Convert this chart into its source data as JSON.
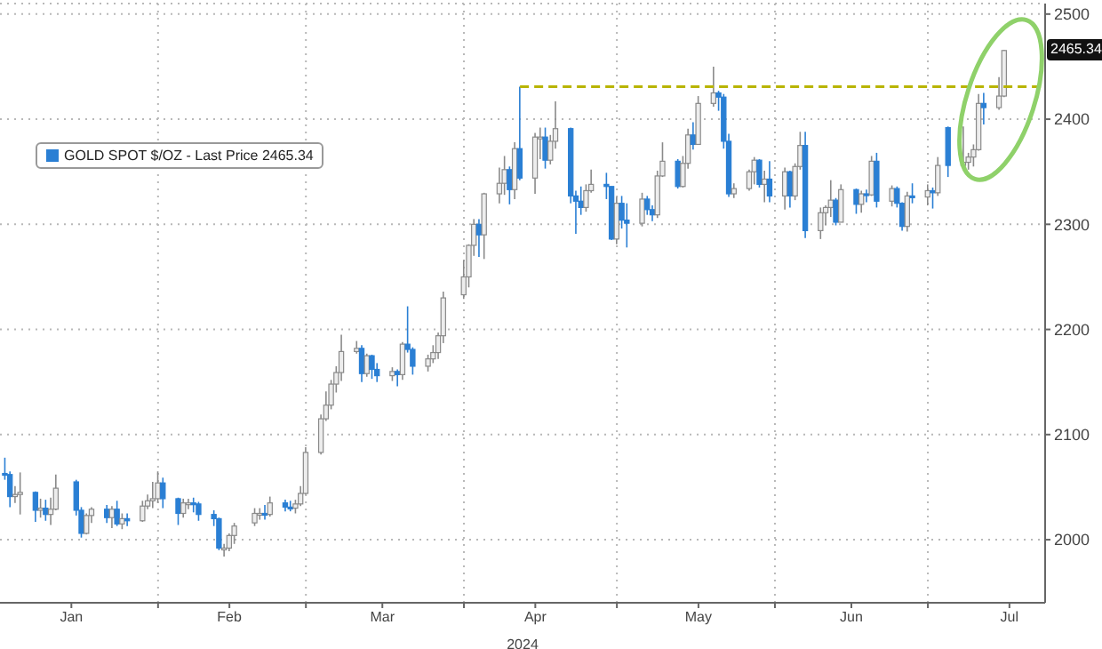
{
  "chart_data": {
    "type": "candlestick",
    "xlabel": "2024",
    "x": [
      "2024-01-02",
      "2024-01-03",
      "2024-01-04",
      "2024-01-05",
      "2024-01-08",
      "2024-01-09",
      "2024-01-10",
      "2024-01-11",
      "2024-01-12",
      "2024-01-16",
      "2024-01-17",
      "2024-01-18",
      "2024-01-19",
      "2024-01-22",
      "2024-01-23",
      "2024-01-24",
      "2024-01-25",
      "2024-01-26",
      "2024-01-29",
      "2024-01-30",
      "2024-01-31",
      "2024-02-01",
      "2024-02-02",
      "2024-02-05",
      "2024-02-06",
      "2024-02-07",
      "2024-02-08",
      "2024-02-09",
      "2024-02-12",
      "2024-02-13",
      "2024-02-14",
      "2024-02-15",
      "2024-02-16",
      "2024-02-20",
      "2024-02-21",
      "2024-02-22",
      "2024-02-23",
      "2024-02-26",
      "2024-02-27",
      "2024-02-28",
      "2024-02-29",
      "2024-03-01",
      "2024-03-04",
      "2024-03-05",
      "2024-03-06",
      "2024-03-07",
      "2024-03-08",
      "2024-03-11",
      "2024-03-12",
      "2024-03-13",
      "2024-03-14",
      "2024-03-15",
      "2024-03-18",
      "2024-03-19",
      "2024-03-20",
      "2024-03-21",
      "2024-03-22",
      "2024-03-25",
      "2024-03-26",
      "2024-03-27",
      "2024-03-28",
      "2024-04-01",
      "2024-04-02",
      "2024-04-03",
      "2024-04-04",
      "2024-04-05",
      "2024-04-08",
      "2024-04-09",
      "2024-04-10",
      "2024-04-11",
      "2024-04-12",
      "2024-04-15",
      "2024-04-16",
      "2024-04-17",
      "2024-04-18",
      "2024-04-19",
      "2024-04-22",
      "2024-04-23",
      "2024-04-24",
      "2024-04-25",
      "2024-04-26",
      "2024-04-29",
      "2024-04-30",
      "2024-05-01",
      "2024-05-02",
      "2024-05-03",
      "2024-05-06",
      "2024-05-07",
      "2024-05-08",
      "2024-05-09",
      "2024-05-10",
      "2024-05-13",
      "2024-05-14",
      "2024-05-15",
      "2024-05-16",
      "2024-05-17",
      "2024-05-20",
      "2024-05-21",
      "2024-05-22",
      "2024-05-23",
      "2024-05-24",
      "2024-05-27",
      "2024-05-28",
      "2024-05-29",
      "2024-05-30",
      "2024-05-31",
      "2024-06-03",
      "2024-06-04",
      "2024-06-05",
      "2024-06-06",
      "2024-06-07",
      "2024-06-10",
      "2024-06-11",
      "2024-06-12",
      "2024-06-13",
      "2024-06-14",
      "2024-06-17",
      "2024-06-18",
      "2024-06-19",
      "2024-06-20",
      "2024-06-21",
      "2024-06-24",
      "2024-06-25",
      "2024-06-26",
      "2024-06-27",
      "2024-06-28",
      "2024-07-01",
      "2024-07-02",
      "2024-07-03",
      "2024-07-05",
      "2024-07-08",
      "2024-07-09",
      "2024-07-10",
      "2024-07-11",
      "2024-07-12",
      "2024-07-15",
      "2024-07-16"
    ],
    "series": [
      {
        "name": "GOLD SPOT $/OZ - Last Price 2465.34",
        "color": "#2a7fd4",
        "colors": [
          "#2a7fd4",
          "#2a7fd4",
          "#ededed",
          "#ededed",
          "#2a7fd4",
          "#ededed",
          "#2a7fd4",
          "#ededed",
          "#ededed",
          "#2a7fd4",
          "#2a7fd4",
          "#ededed",
          "#ededed",
          "#2a7fd4",
          "#ededed",
          "#2a7fd4",
          "#ededed",
          "#2a7fd4",
          "#ededed",
          "#ededed",
          "#ededed",
          "#ededed",
          "#2a7fd4",
          "#2a7fd4",
          "#ededed",
          "#ededed",
          "#2a7fd4",
          "#2a7fd4",
          "#2a7fd4",
          "#2a7fd4",
          "#ededed",
          "#ededed",
          "#ededed",
          "#ededed",
          "#ededed",
          "#2a7fd4",
          "#ededed",
          "#2a7fd4",
          "#2a7fd4",
          "#ededed",
          "#ededed",
          "#ededed",
          "#ededed",
          "#ededed",
          "#ededed",
          "#ededed",
          "#ededed",
          "#ededed",
          "#2a7fd4",
          "#ededed",
          "#2a7fd4",
          "#2a7fd4",
          "#ededed",
          "#2a7fd4",
          "#ededed",
          "#2a7fd4",
          "#2a7fd4",
          "#ededed",
          "#ededed",
          "#ededed",
          "#ededed",
          "#ededed",
          "#ededed",
          "#ededed",
          "#2a7fd4",
          "#ededed",
          "#ededed",
          "#ededed",
          "#2a7fd4",
          "#ededed",
          "#2a7fd4",
          "#ededed",
          "#ededed",
          "#2a7fd4",
          "#ededed",
          "#ededed",
          "#2a7fd4",
          "#2a7fd4",
          "#2a7fd4",
          "#ededed",
          "#ededed",
          "#2a7fd4",
          "#2a7fd4",
          "#ededed",
          "#2a7fd4",
          "#2a7fd4",
          "#ededed",
          "#2a7fd4",
          "#2a7fd4",
          "#ededed",
          "#ededed",
          "#2a7fd4",
          "#ededed",
          "#ededed",
          "#2a7fd4",
          "#ededed",
          "#ededed",
          "#2a7fd4",
          "#2a7fd4",
          "#2a7fd4",
          "#ededed",
          "#ededed",
          "#ededed",
          "#2a7fd4",
          "#ededed",
          "#2a7fd4",
          "#ededed",
          "#2a7fd4",
          "#ededed",
          "#ededed",
          "#2a7fd4",
          "#ededed",
          "#ededed",
          "#ededed",
          "#2a7fd4",
          "#ededed",
          "#2a7fd4",
          "#ededed",
          "#2a7fd4",
          "#ededed",
          "#2a7fd4",
          "#ededed",
          "#2a7fd4",
          "#2a7fd4",
          "#ededed",
          "#2a7fd4",
          "#ededed",
          "#2a7fd4",
          "#ededed",
          "#2a7fd4",
          "#ededed",
          "#ededed",
          "#ededed",
          "#ededed",
          "#2a7fd4",
          "#ededed",
          "#ededed"
        ],
        "ohlc": [
          [
            2063,
            2078,
            2057,
            2062
          ],
          [
            2062,
            2065,
            2031,
            2041
          ],
          [
            2041,
            2051,
            2035,
            2043
          ],
          [
            2043,
            2064,
            2024,
            2045
          ],
          [
            2045,
            2046,
            2017,
            2028
          ],
          [
            2028,
            2039,
            2021,
            2030
          ],
          [
            2030,
            2038,
            2018,
            2024
          ],
          [
            2024,
            2040,
            2014,
            2029
          ],
          [
            2029,
            2062,
            2028,
            2049
          ],
          [
            2055,
            2057,
            2023,
            2028
          ],
          [
            2028,
            2031,
            2002,
            2006
          ],
          [
            2006,
            2025,
            2005,
            2023
          ],
          [
            2023,
            2031,
            2016,
            2029
          ],
          [
            2029,
            2033,
            2016,
            2021
          ],
          [
            2021,
            2032,
            2011,
            2029
          ],
          [
            2029,
            2037,
            2013,
            2015
          ],
          [
            2015,
            2025,
            2010,
            2020
          ],
          [
            2020,
            2025,
            2013,
            2018
          ],
          [
            2018,
            2037,
            2017,
            2032
          ],
          [
            2032,
            2043,
            2029,
            2037
          ],
          [
            2037,
            2055,
            2030,
            2039
          ],
          [
            2039,
            2065,
            2035,
            2054
          ],
          [
            2054,
            2059,
            2030,
            2039
          ],
          [
            2039,
            2040,
            2014,
            2025
          ],
          [
            2025,
            2039,
            2021,
            2035
          ],
          [
            2035,
            2039,
            2029,
            2035
          ],
          [
            2035,
            2040,
            2026,
            2034
          ],
          [
            2034,
            2036,
            2018,
            2024
          ],
          [
            2024,
            2028,
            2013,
            2020
          ],
          [
            2020,
            2021,
            1990,
            1992
          ],
          [
            1992,
            1996,
            1984,
            1992
          ],
          [
            1992,
            2006,
            1989,
            2004
          ],
          [
            2004,
            2016,
            1996,
            2013
          ],
          [
            2016,
            2030,
            2013,
            2025
          ],
          [
            2025,
            2030,
            2019,
            2025
          ],
          [
            2025,
            2033,
            2019,
            2024
          ],
          [
            2024,
            2041,
            2022,
            2035
          ],
          [
            2035,
            2038,
            2027,
            2031
          ],
          [
            2031,
            2037,
            2027,
            2030
          ],
          [
            2030,
            2038,
            2025,
            2034
          ],
          [
            2034,
            2051,
            2032,
            2044
          ],
          [
            2044,
            2088,
            2043,
            2083
          ],
          [
            2083,
            2119,
            2081,
            2115
          ],
          [
            2115,
            2141,
            2113,
            2128
          ],
          [
            2128,
            2152,
            2124,
            2148
          ],
          [
            2148,
            2165,
            2140,
            2159
          ],
          [
            2159,
            2195,
            2151,
            2179
          ],
          [
            2179,
            2189,
            2177,
            2182
          ],
          [
            2182,
            2185,
            2150,
            2158
          ],
          [
            2158,
            2177,
            2155,
            2175
          ],
          [
            2175,
            2176,
            2153,
            2162
          ],
          [
            2162,
            2168,
            2150,
            2156
          ],
          [
            2156,
            2164,
            2151,
            2160
          ],
          [
            2160,
            2162,
            2146,
            2157
          ],
          [
            2157,
            2188,
            2152,
            2186
          ],
          [
            2186,
            2222,
            2178,
            2181
          ],
          [
            2181,
            2183,
            2157,
            2165
          ],
          [
            2165,
            2176,
            2160,
            2172
          ],
          [
            2172,
            2185,
            2168,
            2178
          ],
          [
            2178,
            2197,
            2172,
            2194
          ],
          [
            2194,
            2236,
            2187,
            2230
          ],
          [
            2233,
            2266,
            2229,
            2250
          ],
          [
            2250,
            2281,
            2240,
            2280
          ],
          [
            2280,
            2305,
            2270,
            2300
          ],
          [
            2300,
            2305,
            2269,
            2290
          ],
          [
            2290,
            2330,
            2267,
            2329
          ],
          [
            2329,
            2354,
            2320,
            2339
          ],
          [
            2339,
            2365,
            2328,
            2352
          ],
          [
            2352,
            2355,
            2319,
            2333
          ],
          [
            2333,
            2378,
            2324,
            2372
          ],
          [
            2372,
            2431,
            2342,
            2344
          ],
          [
            2344,
            2387,
            2329,
            2383
          ],
          [
            2383,
            2392,
            2362,
            2383
          ],
          [
            2383,
            2392,
            2353,
            2361
          ],
          [
            2361,
            2385,
            2357,
            2379
          ],
          [
            2379,
            2417,
            2372,
            2391
          ],
          [
            2391,
            2392,
            2320,
            2327
          ],
          [
            2327,
            2332,
            2291,
            2322
          ],
          [
            2322,
            2336,
            2309,
            2316
          ],
          [
            2316,
            2338,
            2312,
            2332
          ],
          [
            2332,
            2352,
            2330,
            2338
          ],
          [
            2338,
            2349,
            2324,
            2336
          ],
          [
            2336,
            2336,
            2285,
            2286
          ],
          [
            2286,
            2326,
            2281,
            2320
          ],
          [
            2320,
            2327,
            2296,
            2304
          ],
          [
            2304,
            2320,
            2278,
            2301
          ],
          [
            2301,
            2330,
            2298,
            2324
          ],
          [
            2324,
            2327,
            2309,
            2314
          ],
          [
            2314,
            2318,
            2303,
            2309
          ],
          [
            2309,
            2351,
            2306,
            2346
          ],
          [
            2346,
            2378,
            2345,
            2360
          ],
          [
            2360,
            2362,
            2334,
            2336
          ],
          [
            2336,
            2365,
            2335,
            2358
          ],
          [
            2358,
            2391,
            2353,
            2385
          ],
          [
            2385,
            2397,
            2371,
            2376
          ],
          [
            2376,
            2422,
            2376,
            2415
          ],
          [
            2415,
            2450,
            2412,
            2425
          ],
          [
            2425,
            2427,
            2408,
            2421
          ],
          [
            2421,
            2424,
            2372,
            2379
          ],
          [
            2379,
            2386,
            2326,
            2329
          ],
          [
            2329,
            2339,
            2325,
            2334
          ],
          [
            2334,
            2352,
            2332,
            2350
          ],
          [
            2350,
            2364,
            2338,
            2361
          ],
          [
            2361,
            2362,
            2335,
            2338
          ],
          [
            2338,
            2351,
            2321,
            2343
          ],
          [
            2343,
            2360,
            2321,
            2327
          ],
          [
            2327,
            2354,
            2314,
            2350
          ],
          [
            2350,
            2351,
            2316,
            2327
          ],
          [
            2327,
            2358,
            2323,
            2355
          ],
          [
            2355,
            2388,
            2352,
            2375
          ],
          [
            2375,
            2388,
            2287,
            2294
          ],
          [
            2294,
            2316,
            2286,
            2311
          ],
          [
            2311,
            2318,
            2299,
            2316
          ],
          [
            2316,
            2342,
            2307,
            2323
          ],
          [
            2323,
            2325,
            2299,
            2302
          ],
          [
            2302,
            2338,
            2302,
            2333
          ],
          [
            2333,
            2334,
            2310,
            2319
          ],
          [
            2319,
            2332,
            2311,
            2329
          ],
          [
            2329,
            2333,
            2321,
            2328
          ],
          [
            2328,
            2365,
            2327,
            2360
          ],
          [
            2360,
            2368,
            2316,
            2322
          ],
          [
            2322,
            2337,
            2317,
            2334
          ],
          [
            2334,
            2336,
            2316,
            2320
          ],
          [
            2320,
            2321,
            2294,
            2298
          ],
          [
            2298,
            2331,
            2293,
            2327
          ],
          [
            2327,
            2339,
            2320,
            2326
          ],
          [
            2326,
            2338,
            2318,
            2332
          ],
          [
            2332,
            2335,
            2315,
            2330
          ],
          [
            2330,
            2364,
            2327,
            2356
          ],
          [
            2392,
            2393,
            2345,
            2356
          ],
          [
            2356,
            2393,
            2353,
            2359
          ],
          [
            2359,
            2368,
            2352,
            2364
          ],
          [
            2364,
            2376,
            2355,
            2371
          ],
          [
            2371,
            2424,
            2370,
            2415
          ],
          [
            2415,
            2425,
            2395,
            2411
          ],
          [
            2411,
            2440,
            2409,
            2422
          ],
          [
            2422,
            2466,
            2421,
            2465.34
          ]
        ]
      },
      {
        "type": "line",
        "color": "#b8b400",
        "line_style": "dashed",
        "marker": "none",
        "x": [
          "2024-04-12",
          "2024-07-24"
        ],
        "values": [
          2431,
          2431
        ]
      }
    ],
    "annotations": [
      {
        "text": "2465.34",
        "y": 2465.34
      }
    ],
    "xlim": [
      "2024-01-01",
      "2024-07-24"
    ],
    "xticks": [
      {
        "value": "2024-01-15",
        "label": "Jan"
      },
      {
        "value": "2024-02-01",
        "label": null
      },
      {
        "value": "2024-02-15",
        "label": "Feb"
      },
      {
        "value": "2024-03-01",
        "label": null
      },
      {
        "value": "2024-03-16",
        "label": "Mar"
      },
      {
        "value": "2024-04-01",
        "label": null
      },
      {
        "value": "2024-04-15",
        "label": "Apr"
      },
      {
        "value": "2024-05-01",
        "label": null
      },
      {
        "value": "2024-05-17",
        "label": "May"
      },
      {
        "value": "2024-06-01",
        "label": null
      },
      {
        "value": "2024-06-16",
        "label": "Jun"
      },
      {
        "value": "2024-07-01",
        "label": null
      },
      {
        "value": "2024-07-17",
        "label": "Jul"
      }
    ],
    "ylim": [
      1940,
      2510
    ],
    "yticks": [
      2000,
      2100,
      2200,
      2300,
      2400,
      2500
    ],
    "grid": true,
    "legend": "top left"
  }
}
